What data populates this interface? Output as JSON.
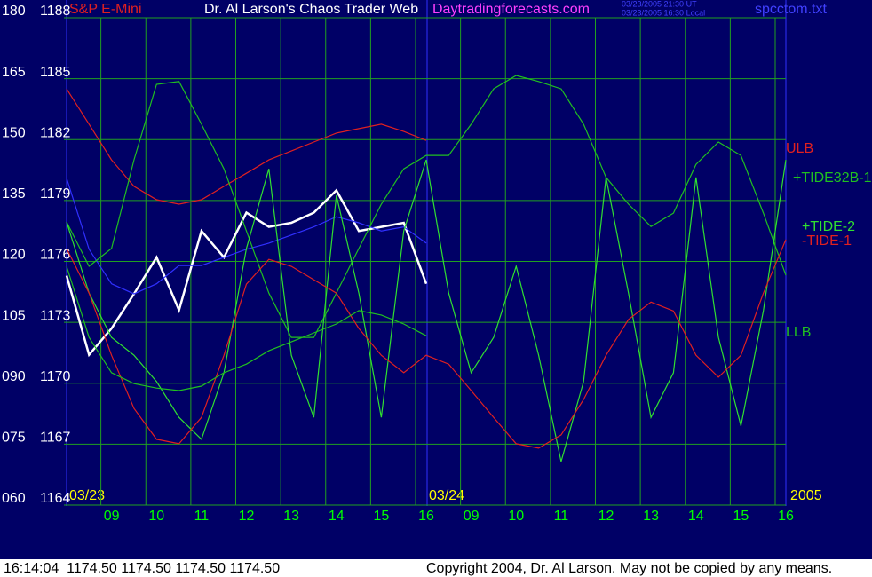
{
  "chart_data": {
    "type": "line",
    "title": "Dr. Al Larson's Chaos Trader Web",
    "subtitle": "Daytradingforecasts.com",
    "annotations": [
      "03/23/2005 21:30 UT",
      "03/23/2005 16:30 Local",
      "spcctom.txt",
      "03/23",
      "03/24",
      "2005",
      "16:14:04  1174.50 1174.50 1174.50 1174.50",
      "Copyright 2004, Dr. Al Larson. May not be copied by any means."
    ],
    "xlim": [
      0,
      16
    ],
    "xticks": [
      {
        "value": 1,
        "label": "09"
      },
      {
        "value": 2,
        "label": "10"
      },
      {
        "value": 3,
        "label": "11"
      },
      {
        "value": 4,
        "label": "12"
      },
      {
        "value": 5,
        "label": "13"
      },
      {
        "value": 6,
        "label": "14"
      },
      {
        "value": 7,
        "label": "15"
      },
      {
        "value": 8,
        "label": "16"
      },
      {
        "value": 9,
        "label": "09"
      },
      {
        "value": 10,
        "label": "10"
      },
      {
        "value": 11,
        "label": "11"
      },
      {
        "value": 12,
        "label": "12"
      },
      {
        "value": 13,
        "label": "13"
      },
      {
        "value": 14,
        "label": "14"
      },
      {
        "value": 15,
        "label": "15"
      },
      {
        "value": 16,
        "label": "16"
      }
    ],
    "ylim": [
      60,
      180
    ],
    "yticks": [
      180,
      165,
      150,
      135,
      120,
      105,
      {
        "value": 90,
        "label": "090"
      },
      {
        "value": 75,
        "label": "075"
      },
      {
        "value": 60,
        "label": "060"
      }
    ],
    "y2lim": [
      1164,
      1188
    ],
    "y2ticks": [
      1188,
      1185,
      1182,
      1179,
      1176,
      1173,
      1170,
      1167,
      1164
    ],
    "grid": true,
    "series": [
      {
        "name": "S&P E-Mini",
        "color": "#ffffff",
        "axis": "y2",
        "x": [
          0,
          0.5,
          1,
          1.5,
          2,
          2.5,
          3,
          3.5,
          4,
          4.5,
          5,
          5.5,
          6,
          6.5,
          7,
          7.5,
          8
        ],
        "values": [
          1175.3,
          1171.4,
          1172.7,
          1174.4,
          1176.2,
          1173.6,
          1177.5,
          1176.2,
          1178.4,
          1177.7,
          1177.9,
          1178.4,
          1179.5,
          1177.5,
          1177.7,
          1177.9,
          1174.9
        ]
      },
      {
        "color": "#3030ff",
        "axis": "y2",
        "x": [
          0,
          0.5,
          1,
          1.5,
          2,
          2.5,
          3,
          3.5,
          4,
          4.5,
          5,
          5.5,
          6,
          6.5,
          7,
          7.5,
          8
        ],
        "values": [
          1180.1,
          1176.6,
          1174.9,
          1174.4,
          1174.9,
          1175.8,
          1175.8,
          1176.2,
          1176.6,
          1176.9,
          1177.3,
          1177.7,
          1178.2,
          1177.9,
          1177.5,
          1177.7,
          1176.9
        ]
      },
      {
        "name": "ULB",
        "color": "#e02020",
        "x": [
          0,
          0.5,
          1,
          1.5,
          2,
          2.5,
          3,
          3.5,
          4,
          4.5,
          5,
          5.5,
          6,
          6.5,
          7,
          7.5,
          8
        ],
        "values": [
          162.5,
          153.8,
          145.0,
          138.5,
          135.2,
          134.1,
          135.2,
          138.5,
          141.7,
          145.0,
          147.2,
          149.4,
          151.6,
          152.7,
          153.8,
          152.0,
          149.8
        ]
      },
      {
        "name": "+TIDE32B-1",
        "color": "#20c020",
        "x": [
          0,
          0.5,
          1,
          1.5,
          2,
          2.5,
          3,
          3.5,
          4,
          4.5,
          5,
          5.5,
          6,
          6.5,
          7,
          7.5,
          8,
          8.5,
          9,
          9.5,
          10,
          10.5,
          11,
          11.5,
          12,
          12.5,
          13,
          13.5,
          14,
          14.5,
          15,
          15.5,
          16
        ],
        "values": [
          129.7,
          118.8,
          123.2,
          145.0,
          163.6,
          164.3,
          153.8,
          142.8,
          127.5,
          112.2,
          101.3,
          101.3,
          112.2,
          123.2,
          134.1,
          142.8,
          146.1,
          146.1,
          153.8,
          162.5,
          165.8,
          164.3,
          162.5,
          153.8,
          140.7,
          134.1,
          128.6,
          131.9,
          143.9,
          149.4,
          146.1,
          131.9,
          116.6
        ]
      },
      {
        "name": "+TIDE-2",
        "color": "#30e030",
        "x": [
          0,
          0.5,
          1,
          1.5,
          2,
          2.5,
          3,
          3.5,
          4,
          4.5,
          5,
          5.5,
          6,
          6.5,
          7,
          7.5,
          8,
          8.5,
          9,
          9.5,
          10,
          10.5,
          11,
          11.5,
          12,
          12.5,
          13,
          13.5,
          14,
          14.5,
          15,
          15.5,
          16
        ],
        "values": [
          129.7,
          112.2,
          101.3,
          96.9,
          90.4,
          81.6,
          76.2,
          92.6,
          123.2,
          142.8,
          96.9,
          81.6,
          136.3,
          112.2,
          81.6,
          127.5,
          145.0,
          112.2,
          92.6,
          101.3,
          118.8,
          96.9,
          70.7,
          90.4,
          140.7,
          112.2,
          81.6,
          92.6,
          140.7,
          101.3,
          79.5,
          107.9,
          145.0
        ]
      },
      {
        "name": "-TIDE-1",
        "color": "#e02020",
        "x": [
          0,
          0.5,
          1,
          1.5,
          2,
          2.5,
          3,
          3.5,
          4,
          4.5,
          5,
          5.5,
          6,
          6.5,
          7,
          7.5,
          8,
          8.5,
          9,
          9.5,
          10,
          10.5,
          11,
          11.5,
          12,
          12.5,
          13,
          13.5,
          14,
          14.5,
          15,
          15.5,
          16
        ],
        "values": [
          123.2,
          112.2,
          96.9,
          83.8,
          76.2,
          75.1,
          81.6,
          96.9,
          114.4,
          120.5,
          118.8,
          115.5,
          112.2,
          103.5,
          96.9,
          92.6,
          96.9,
          94.7,
          88.2,
          81.6,
          75.1,
          74.0,
          77.3,
          86.0,
          96.9,
          105.7,
          110.0,
          107.8,
          96.9,
          91.5,
          96.9,
          112.2,
          125.4
        ]
      },
      {
        "name": "LLB",
        "color": "#20c020",
        "x": [
          0,
          0.5,
          1,
          1.5,
          2,
          2.5,
          3,
          3.5,
          4,
          4.5,
          5,
          5.5,
          6,
          6.5,
          7,
          7.5,
          8
        ],
        "values": [
          118.8,
          101.3,
          92.6,
          89.9,
          88.8,
          88.2,
          89.3,
          92.6,
          94.7,
          98.0,
          100.2,
          102.4,
          104.6,
          107.9,
          106.8,
          104.6,
          101.7
        ]
      }
    ]
  }
}
